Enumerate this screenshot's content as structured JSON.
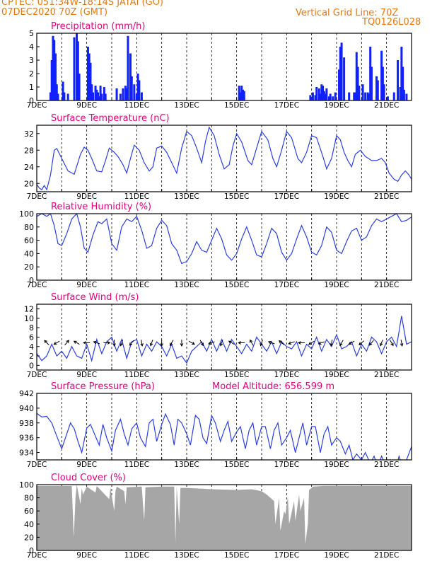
{
  "header": {
    "station": "CPTEC:   051:34W-18:14S   JATAI (GO)",
    "init": "07DEC2020 70Z (GMT)",
    "grid_note": "Vertical Grid Line: 70Z",
    "model": "TQ0126L028"
  },
  "colors": {
    "title": "#e4007c",
    "header": "#e07a10",
    "line": "#2b3fe0",
    "bar": "#1020ff",
    "cloud": "#a6a6a6"
  },
  "chart_data": [
    {
      "type": "bar",
      "title": "Precipitation (mm/h)",
      "xlim": [
        7,
        22
      ],
      "ylim": [
        0,
        5
      ],
      "yticks": [
        0,
        1,
        2,
        3,
        4,
        5
      ],
      "xticks": [
        "7DEC",
        "9DEC",
        "11DEC",
        "13DEC",
        "15DEC",
        "17DEC",
        "19DEC",
        "21DEC"
      ],
      "x": [
        7.55,
        7.6,
        7.65,
        7.7,
        7.75,
        7.8,
        7.85,
        8.05,
        8.1,
        8.25,
        8.5,
        8.6,
        8.65,
        8.7,
        9.05,
        9.1,
        9.15,
        9.2,
        9.25,
        9.35,
        9.4,
        9.45,
        9.5,
        9.55,
        9.6,
        9.7,
        9.75,
        10.2,
        10.35,
        10.45,
        10.55,
        10.6,
        10.65,
        10.75,
        10.8,
        10.9,
        11.0,
        11.05,
        11.1,
        11.2,
        15.1,
        15.15,
        15.2,
        15.25,
        15.3,
        17.95,
        18.0,
        18.05,
        18.15,
        18.2,
        18.3,
        18.35,
        18.4,
        18.45,
        18.5,
        18.55,
        18.6,
        18.7,
        18.75,
        18.85,
        18.95,
        19.1,
        19.15,
        19.2,
        19.3,
        19.5,
        19.7,
        19.75,
        19.8,
        19.85,
        19.9,
        20.05,
        20.15,
        20.25,
        20.3,
        20.35,
        20.4,
        20.6,
        20.65,
        20.8,
        20.85,
        20.9,
        21.05,
        21.3,
        21.45,
        21.55,
        21.6,
        21.65,
        21.7,
        21.8
      ],
      "values": [
        0.6,
        3.0,
        4.8,
        4.5,
        3.5,
        1.2,
        0.5,
        1.4,
        0.6,
        0.5,
        4.7,
        5.0,
        4.4,
        2.0,
        4.0,
        3.5,
        2.8,
        1.2,
        0.6,
        1.1,
        0.8,
        0.6,
        0.3,
        1.1,
        0.5,
        1.0,
        0.5,
        0.9,
        0.5,
        0.9,
        1.1,
        0.9,
        4.8,
        3.5,
        1.8,
        1.2,
        0.5,
        2.0,
        1.5,
        0.6,
        1.1,
        0.6,
        1.1,
        0.8,
        0.7,
        0.4,
        0.2,
        0.6,
        0.4,
        1.0,
        0.9,
        0.5,
        1.2,
        1.1,
        0.7,
        0.5,
        0.9,
        0.3,
        0.5,
        0.3,
        0.6,
        2.3,
        4.0,
        4.3,
        3.2,
        0.6,
        0.6,
        0.6,
        3.6,
        2.5,
        1.1,
        1.2,
        0.6,
        0.6,
        0.5,
        4.0,
        2.5,
        1.8,
        1.5,
        3.7,
        2.5,
        1.2,
        0.3,
        0.6,
        3.0,
        1.0,
        4.0,
        2.5,
        0.8,
        0.5
      ]
    },
    {
      "type": "line",
      "title": "Surface Temperature (nC)",
      "xlim": [
        7,
        22
      ],
      "ylim": [
        18,
        34
      ],
      "yticks": [
        20,
        24,
        28,
        32
      ],
      "xticks": [
        "7DEC",
        "9DEC",
        "11DEC",
        "13DEC",
        "15DEC",
        "17DEC",
        "19DEC",
        "21DEC"
      ],
      "x": [
        7.0,
        7.1,
        7.2,
        7.3,
        7.4,
        7.55,
        7.7,
        7.8,
        8.0,
        8.25,
        8.5,
        8.75,
        8.9,
        9.05,
        9.2,
        9.4,
        9.6,
        9.75,
        9.9,
        10.1,
        10.25,
        10.45,
        10.6,
        10.75,
        10.9,
        11.1,
        11.3,
        11.5,
        11.65,
        11.8,
        12.0,
        12.2,
        12.4,
        12.6,
        12.8,
        13.0,
        13.2,
        13.4,
        13.6,
        13.75,
        13.9,
        14.1,
        14.3,
        14.5,
        14.7,
        14.85,
        15.0,
        15.2,
        15.45,
        15.6,
        15.8,
        16.0,
        16.25,
        16.45,
        16.6,
        16.8,
        17.0,
        17.2,
        17.45,
        17.6,
        17.8,
        18.0,
        18.2,
        18.45,
        18.6,
        18.8,
        19.0,
        19.15,
        19.3,
        19.45,
        19.6,
        19.75,
        19.95,
        20.15,
        20.4,
        20.6,
        20.8,
        20.95,
        21.1,
        21.3,
        21.45,
        21.6,
        21.75,
        21.9,
        22.0
      ],
      "values": [
        19.8,
        18.9,
        18.5,
        19.5,
        18.5,
        22.0,
        28.0,
        28.4,
        26.0,
        23.0,
        22.2,
        27.0,
        28.7,
        28.0,
        26.0,
        23.0,
        22.8,
        25.5,
        28.5,
        27.5,
        26.5,
        24.5,
        22.5,
        26.0,
        29.2,
        28.0,
        25.0,
        23.0,
        24.0,
        28.5,
        29.0,
        27.5,
        25.0,
        22.5,
        28.5,
        32.5,
        31.5,
        28.5,
        25.0,
        30.0,
        33.5,
        31.5,
        27.0,
        23.5,
        24.5,
        29.0,
        32.0,
        30.0,
        25.5,
        24.5,
        28.5,
        32.5,
        30.5,
        26.0,
        24.0,
        28.0,
        32.5,
        31.0,
        26.0,
        25.0,
        27.5,
        31.5,
        31.0,
        26.5,
        23.5,
        26.0,
        31.5,
        30.5,
        27.5,
        25.5,
        24.0,
        27.0,
        28.0,
        26.5,
        25.5,
        25.5,
        26.0,
        25.0,
        22.5,
        21.0,
        20.5,
        22.0,
        23.0,
        22.0,
        21.0
      ]
    },
    {
      "type": "line",
      "title": "Relative Humidity (%)",
      "xlim": [
        7,
        22
      ],
      "ylim": [
        0,
        100
      ],
      "yticks": [
        0,
        20,
        40,
        60,
        80,
        100
      ],
      "xticks": [
        "7DEC",
        "9DEC",
        "11DEC",
        "13DEC",
        "15DEC",
        "17DEC",
        "19DEC",
        "21DEC"
      ],
      "x": [
        7.0,
        7.2,
        7.4,
        7.55,
        7.7,
        7.85,
        8.0,
        8.2,
        8.4,
        8.6,
        8.75,
        8.9,
        9.05,
        9.25,
        9.45,
        9.6,
        9.8,
        10.0,
        10.2,
        10.4,
        10.6,
        10.8,
        11.0,
        11.2,
        11.4,
        11.6,
        11.8,
        12.0,
        12.2,
        12.4,
        12.6,
        12.8,
        13.0,
        13.2,
        13.4,
        13.6,
        13.8,
        14.0,
        14.2,
        14.4,
        14.6,
        14.8,
        15.0,
        15.2,
        15.4,
        15.6,
        15.8,
        16.0,
        16.2,
        16.4,
        16.6,
        16.8,
        17.0,
        17.2,
        17.4,
        17.6,
        17.8,
        18.0,
        18.2,
        18.4,
        18.6,
        18.8,
        19.0,
        19.2,
        19.4,
        19.6,
        19.8,
        20.0,
        20.2,
        20.4,
        20.6,
        20.8,
        21.0,
        21.2,
        21.4,
        21.6,
        21.8,
        22.0
      ],
      "values": [
        96,
        100,
        96,
        100,
        82,
        55,
        52,
        70,
        92,
        100,
        80,
        48,
        42,
        68,
        88,
        85,
        92,
        55,
        45,
        80,
        92,
        88,
        96,
        75,
        48,
        52,
        78,
        90,
        82,
        55,
        45,
        25,
        28,
        40,
        58,
        45,
        42,
        60,
        78,
        62,
        38,
        30,
        40,
        62,
        80,
        60,
        38,
        35,
        55,
        78,
        70,
        42,
        30,
        40,
        62,
        82,
        65,
        42,
        38,
        52,
        80,
        72,
        45,
        40,
        58,
        74,
        78,
        60,
        65,
        82,
        92,
        88,
        92,
        96,
        100,
        88,
        90,
        95
      ]
    },
    {
      "type": "line",
      "title": "Surface Wind (m/s)",
      "xlim": [
        7,
        22
      ],
      "ylim": [
        -1,
        13
      ],
      "yticks": [
        0,
        2,
        4,
        6,
        8,
        10,
        12
      ],
      "xticks": [
        "7DEC",
        "9DEC",
        "11DEC",
        "13DEC",
        "15DEC",
        "17DEC",
        "19DEC",
        "21DEC"
      ],
      "x": [
        7.0,
        7.2,
        7.4,
        7.6,
        7.8,
        8.0,
        8.2,
        8.4,
        8.6,
        8.8,
        9.0,
        9.2,
        9.4,
        9.6,
        9.8,
        10.0,
        10.2,
        10.4,
        10.6,
        10.8,
        11.0,
        11.2,
        11.4,
        11.6,
        11.8,
        12.0,
        12.2,
        12.4,
        12.6,
        12.8,
        13.0,
        13.2,
        13.4,
        13.6,
        13.8,
        14.0,
        14.2,
        14.4,
        14.6,
        14.8,
        15.0,
        15.2,
        15.4,
        15.6,
        15.8,
        16.0,
        16.2,
        16.4,
        16.6,
        16.8,
        17.0,
        17.2,
        17.4,
        17.6,
        17.8,
        18.0,
        18.2,
        18.4,
        18.6,
        18.8,
        19.0,
        19.2,
        19.4,
        19.6,
        19.8,
        20.0,
        20.2,
        20.4,
        20.6,
        20.8,
        21.0,
        21.2,
        21.4,
        21.6,
        21.8,
        22.0
      ],
      "values": [
        2.5,
        1.0,
        2.0,
        4.5,
        2.0,
        3.0,
        1.5,
        4.0,
        2.0,
        1.5,
        4.5,
        1.0,
        5.5,
        2.5,
        5.0,
        6.0,
        3.0,
        5.5,
        1.5,
        5.0,
        5.5,
        2.0,
        4.5,
        3.0,
        5.0,
        4.0,
        2.0,
        4.5,
        1.5,
        2.0,
        0.5,
        3.0,
        4.0,
        5.0,
        3.0,
        5.5,
        3.0,
        5.5,
        3.0,
        5.5,
        4.0,
        2.5,
        4.5,
        3.0,
        6.0,
        4.5,
        3.0,
        5.0,
        2.5,
        5.0,
        4.0,
        3.5,
        5.0,
        2.0,
        4.5,
        3.5,
        6.0,
        3.0,
        5.5,
        4.0,
        6.5,
        3.5,
        4.0,
        5.0,
        2.0,
        4.5,
        3.0,
        6.0,
        5.0,
        2.5,
        5.0,
        6.0,
        4.0,
        10.5,
        4.5,
        5.0
      ],
      "arrows": {
        "x": [
          7.4,
          7.8,
          8.2,
          8.6,
          9.0,
          9.4,
          9.8,
          10.1,
          10.4,
          10.8,
          11.2,
          11.6,
          12.0,
          12.4,
          12.8,
          13.2,
          13.6,
          14.0,
          14.4,
          14.8,
          15.2,
          15.6,
          16.0,
          16.4,
          16.8,
          17.2,
          17.6,
          18.0,
          18.4,
          18.8,
          19.2,
          19.6,
          20.0,
          20.4,
          20.8,
          21.2,
          21.6
        ],
        "dir_deg": [
          315,
          240,
          40,
          300,
          270,
          290,
          90,
          180,
          200,
          220,
          170,
          200,
          180,
          210,
          180,
          120,
          150,
          250,
          200,
          300,
          270,
          330,
          200,
          290,
          310,
          250,
          270,
          240,
          250,
          190,
          210,
          240,
          230,
          220,
          200,
          150,
          170
        ]
      }
    },
    {
      "type": "line",
      "title": "Surface Pressure (hPa)",
      "annotation": "Model Altitude: 656.599  m",
      "xlim": [
        7,
        22
      ],
      "ylim": [
        933,
        942
      ],
      "yticks": [
        934,
        936,
        938,
        940,
        942
      ],
      "xticks": [
        "7DEC",
        "9DEC",
        "11DEC",
        "13DEC",
        "15DEC",
        "17DEC",
        "19DEC",
        "21DEC"
      ],
      "x": [
        7.0,
        7.2,
        7.4,
        7.6,
        7.8,
        8.0,
        8.15,
        8.35,
        8.5,
        8.65,
        8.8,
        9.0,
        9.15,
        9.35,
        9.5,
        9.65,
        9.8,
        10.0,
        10.15,
        10.35,
        10.5,
        10.65,
        10.8,
        11.0,
        11.15,
        11.35,
        11.5,
        11.65,
        11.8,
        12.0,
        12.15,
        12.35,
        12.5,
        12.65,
        12.8,
        13.0,
        13.15,
        13.35,
        13.5,
        13.65,
        13.8,
        14.0,
        14.15,
        14.35,
        14.5,
        14.65,
        14.8,
        15.0,
        15.15,
        15.35,
        15.5,
        15.65,
        15.8,
        16.0,
        16.15,
        16.35,
        16.5,
        16.65,
        16.8,
        17.0,
        17.15,
        17.35,
        17.5,
        17.65,
        17.8,
        18.0,
        18.15,
        18.35,
        18.5,
        18.65,
        18.8,
        19.0,
        19.15,
        19.35,
        19.5,
        19.65,
        19.8,
        20.0,
        20.15,
        20.35,
        20.5,
        20.65,
        20.8,
        21.0,
        21.15,
        21.35,
        21.5,
        21.65,
        21.8,
        22.0
      ],
      "values": [
        939.3,
        938.8,
        938.9,
        938.0,
        936.2,
        934.5,
        936.0,
        938.0,
        937.2,
        935.5,
        934.0,
        937.3,
        937.8,
        936.2,
        935.0,
        937.8,
        936.0,
        934.2,
        937.0,
        938.5,
        936.5,
        935.0,
        937.2,
        938.0,
        936.0,
        934.8,
        938.0,
        938.5,
        935.5,
        937.8,
        939.2,
        937.8,
        935.0,
        938.5,
        938.0,
        936.5,
        935.0,
        939.0,
        938.5,
        936.0,
        935.2,
        939.0,
        938.0,
        935.5,
        937.0,
        938.2,
        935.5,
        936.8,
        937.5,
        934.5,
        937.0,
        938.0,
        935.0,
        937.5,
        937.5,
        934.5,
        937.0,
        938.0,
        935.0,
        936.0,
        937.0,
        934.0,
        936.0,
        938.0,
        935.0,
        937.5,
        937.5,
        934.0,
        936.5,
        937.5,
        935.0,
        936.0,
        935.5,
        933.8,
        935.0,
        933.0,
        933.8,
        933.0,
        934.0,
        932.5,
        933.5,
        932.0,
        933.5,
        932.0,
        933.0,
        931.5,
        933.5,
        932.0,
        933.0,
        934.8
      ]
    },
    {
      "type": "area",
      "title": "Cloud Cover (%)",
      "xlim": [
        7,
        22
      ],
      "ylim": [
        0,
        100
      ],
      "yticks": [
        0,
        20,
        40,
        60,
        80,
        100
      ],
      "xticks": [
        "7DEC",
        "9DEC",
        "11DEC",
        "13DEC",
        "15DEC",
        "17DEC",
        "19DEC",
        "21DEC"
      ],
      "x": [
        7.0,
        7.5,
        8.4,
        8.45,
        8.48,
        8.55,
        8.6,
        8.75,
        8.8,
        8.85,
        9.0,
        9.35,
        9.4,
        9.45,
        9.9,
        9.95,
        10.1,
        10.15,
        10.2,
        10.5,
        10.55,
        10.6,
        11.2,
        11.3,
        11.35,
        12.0,
        12.5,
        12.55,
        12.6,
        12.7,
        12.75,
        13.0,
        14.0,
        15.0,
        15.6,
        16.0,
        16.2,
        16.5,
        16.55,
        16.7,
        16.75,
        16.9,
        16.95,
        17.05,
        17.1,
        17.3,
        17.35,
        17.5,
        17.55,
        17.7,
        17.75,
        17.85,
        17.9,
        18.0,
        18.05,
        18.5,
        19.0,
        20.0,
        21.0,
        22.0
      ],
      "values": [
        98,
        98,
        98,
        50,
        20,
        80,
        100,
        70,
        95,
        85,
        97,
        88,
        98,
        96,
        78,
        96,
        60,
        90,
        97,
        90,
        70,
        96,
        97,
        45,
        96,
        97,
        97,
        12,
        97,
        40,
        95,
        95,
        93,
        92,
        93,
        90,
        85,
        75,
        40,
        80,
        30,
        60,
        55,
        82,
        40,
        75,
        45,
        85,
        60,
        80,
        10,
        40,
        92,
        95,
        97,
        98,
        98,
        98,
        98,
        98
      ]
    }
  ]
}
